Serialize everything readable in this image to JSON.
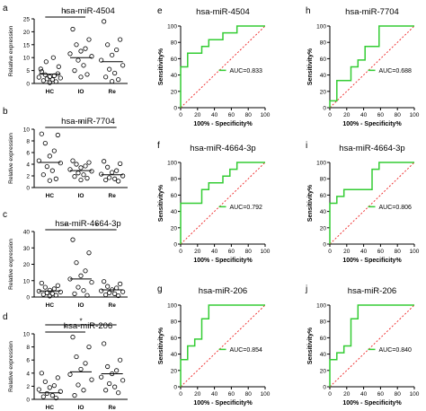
{
  "figure": {
    "background": "#ffffff"
  },
  "colors": {
    "roc": "#33cc33",
    "diagonal": "#ee2222",
    "axis": "#000000",
    "points": "#000000"
  },
  "chart_data": [
    {
      "id": "a",
      "panel": "a",
      "type": "scatter",
      "title": "hsa-miR-4504",
      "ylabel": "Relative expression",
      "ylim": [
        0,
        25
      ],
      "yticks": [
        "0",
        "5",
        "10",
        "15",
        "20",
        "25"
      ],
      "categories": [
        "HC",
        "IO",
        "Re"
      ],
      "points": [
        [
          4.6,
          3.8,
          3.4,
          3.0,
          2.6,
          2.4,
          2.1,
          1.8,
          1.5,
          1.1,
          0.7,
          0.3,
          5.6,
          6.5,
          8.4,
          10.0
        ],
        [
          21.0,
          17.0,
          15.0,
          13.5,
          12.5,
          11.5,
          10.5,
          9.0,
          7.0,
          5.0,
          3.5,
          2.5
        ],
        [
          24.0,
          17.0,
          15.0,
          13.0,
          11.0,
          9.0,
          7.0,
          5.5,
          4.0,
          2.5,
          1.5,
          0.8
        ]
      ],
      "means": [
        3.6,
        10.0,
        8.4
      ],
      "brackets": [
        {
          "from": 0,
          "to": 1,
          "label": "*",
          "level": 0
        }
      ]
    },
    {
      "id": "b",
      "panel": "b",
      "type": "scatter",
      "title": "hsa-miR-7704",
      "ylabel": "Relative expression",
      "ylim": [
        0,
        10
      ],
      "yticks": [
        "0",
        "2",
        "4",
        "6",
        "8",
        "10"
      ],
      "categories": [
        "HC",
        "IO",
        "Re"
      ],
      "points": [
        [
          9.2,
          9.0,
          7.6,
          6.3,
          5.4,
          4.6,
          4.2,
          3.6,
          2.9,
          2.2,
          1.5,
          1.2
        ],
        [
          4.6,
          4.3,
          4.0,
          3.7,
          3.4,
          3.1,
          2.8,
          2.5,
          2.2,
          1.9,
          1.6,
          1.3
        ],
        [
          4.5,
          4.1,
          3.5,
          2.9,
          2.6,
          2.3,
          2.0,
          1.7,
          1.5,
          1.3,
          1.1
        ]
      ],
      "means": [
        4.3,
        2.9,
        2.2
      ],
      "brackets": [
        {
          "from": 0,
          "to": 2,
          "label": "*",
          "level": 0
        }
      ]
    },
    {
      "id": "c",
      "panel": "c",
      "type": "scatter",
      "title": "hsa-miR-4664-3p",
      "ylabel": "Relative expression",
      "ylim": [
        0,
        40
      ],
      "yticks": [
        "0",
        "10",
        "20",
        "30",
        "40"
      ],
      "categories": [
        "HC",
        "IO",
        "Re"
      ],
      "points": [
        [
          8.5,
          7.0,
          6.0,
          5.0,
          4.2,
          3.6,
          3.1,
          2.6,
          2.1,
          1.6,
          1.1,
          0.6
        ],
        [
          35.0,
          27.0,
          21.0,
          16.0,
          13.0,
          11.0,
          9.0,
          6.0,
          4.0,
          2.0,
          1.0
        ],
        [
          9.5,
          8.0,
          6.5,
          5.5,
          4.5,
          3.8,
          3.2,
          2.6,
          2.0,
          1.4,
          0.8
        ]
      ],
      "means": [
        3.7,
        11.0,
        4.4
      ],
      "brackets": [
        {
          "from": 0,
          "to": 1,
          "label": "*",
          "level": 0
        },
        {
          "from": 1,
          "to": 2,
          "label": "*",
          "level": 0
        }
      ]
    },
    {
      "id": "d",
      "panel": "d",
      "type": "scatter",
      "title": "hsa-miR-206",
      "ylabel": "Relative expression",
      "ylim": [
        0,
        10
      ],
      "yticks": [
        "0",
        "2",
        "4",
        "6",
        "8",
        "10"
      ],
      "categories": [
        "HC",
        "IO",
        "Re"
      ],
      "points": [
        [
          4.0,
          3.3,
          2.7,
          2.1,
          1.8,
          1.5,
          1.2,
          0.9,
          0.6,
          0.4,
          0.2
        ],
        [
          9.5,
          8.0,
          6.5,
          5.5,
          4.6,
          3.8,
          3.0,
          2.2,
          1.4,
          0.6
        ],
        [
          8.5,
          6.0,
          5.0,
          4.4,
          3.9,
          3.4,
          2.9,
          2.4,
          1.9,
          1.4,
          1.0
        ]
      ],
      "means": [
        1.0,
        4.2,
        3.9
      ],
      "brackets": [
        {
          "from": 0,
          "to": 1,
          "label": "*",
          "level": 0
        },
        {
          "from": 0,
          "to": 2,
          "label": "*",
          "level": 1
        }
      ]
    },
    {
      "id": "e",
      "panel": "e",
      "type": "line",
      "title": "hsa-miR-4504",
      "xlabel": "100% - Specificity%",
      "ylabel": "Sensitivity%",
      "xlim": [
        0,
        100
      ],
      "ylim": [
        0,
        100
      ],
      "xticks": [
        "0",
        "20",
        "40",
        "60",
        "80",
        "100"
      ],
      "yticks": [
        "0",
        "20",
        "40",
        "60",
        "80",
        "100"
      ],
      "auc_label": "AUC=0.833",
      "roc": [
        [
          0,
          0
        ],
        [
          0,
          50
        ],
        [
          8.3,
          50
        ],
        [
          8.3,
          66.7
        ],
        [
          25,
          66.7
        ],
        [
          25,
          75
        ],
        [
          33.3,
          75
        ],
        [
          33.3,
          83.3
        ],
        [
          50,
          83.3
        ],
        [
          50,
          91.7
        ],
        [
          66.7,
          91.7
        ],
        [
          66.7,
          100
        ],
        [
          100,
          100
        ]
      ]
    },
    {
      "id": "h",
      "panel": "h",
      "type": "line",
      "title": "hsa-miR-7704",
      "xlabel": "100% - Specificity%",
      "ylabel": "Sensitivity%",
      "xlim": [
        0,
        100
      ],
      "ylim": [
        0,
        100
      ],
      "xticks": [
        "0",
        "20",
        "40",
        "60",
        "80",
        "100"
      ],
      "yticks": [
        "0",
        "20",
        "40",
        "60",
        "80",
        "100"
      ],
      "auc_label": "AUC=0.688",
      "roc": [
        [
          0,
          0
        ],
        [
          0,
          8.3
        ],
        [
          8.3,
          8.3
        ],
        [
          8.3,
          33.3
        ],
        [
          25,
          33.3
        ],
        [
          25,
          50
        ],
        [
          33.3,
          50
        ],
        [
          33.3,
          58.3
        ],
        [
          41.7,
          58.3
        ],
        [
          41.7,
          75
        ],
        [
          58.3,
          75
        ],
        [
          58.3,
          100
        ],
        [
          100,
          100
        ]
      ]
    },
    {
      "id": "f",
      "panel": "f",
      "type": "line",
      "title": "hsa-miR-4664-3p",
      "xlabel": "100% - Specificity%",
      "ylabel": "Sensitivity%",
      "xlim": [
        0,
        100
      ],
      "ylim": [
        0,
        100
      ],
      "xticks": [
        "0",
        "20",
        "40",
        "60",
        "80",
        "100"
      ],
      "yticks": [
        "0",
        "20",
        "40",
        "60",
        "80",
        "100"
      ],
      "auc_label": "AUC=0.792",
      "roc": [
        [
          0,
          0
        ],
        [
          0,
          50
        ],
        [
          25,
          50
        ],
        [
          25,
          66.7
        ],
        [
          33.3,
          66.7
        ],
        [
          33.3,
          75
        ],
        [
          50,
          75
        ],
        [
          50,
          83.3
        ],
        [
          58.3,
          83.3
        ],
        [
          58.3,
          91.7
        ],
        [
          66.7,
          91.7
        ],
        [
          66.7,
          100
        ],
        [
          100,
          100
        ]
      ]
    },
    {
      "id": "i",
      "panel": "i",
      "type": "line",
      "title": "hsa-miR-4664-3p",
      "xlabel": "100% - Specificity%",
      "ylabel": "Sensitivity%",
      "xlim": [
        0,
        100
      ],
      "ylim": [
        0,
        100
      ],
      "xticks": [
        "0",
        "20",
        "40",
        "60",
        "80",
        "100"
      ],
      "yticks": [
        "0",
        "20",
        "40",
        "60",
        "80",
        "100"
      ],
      "auc_label": "AUC=0.806",
      "roc": [
        [
          0,
          0
        ],
        [
          0,
          50
        ],
        [
          8.3,
          50
        ],
        [
          8.3,
          58.3
        ],
        [
          16.7,
          58.3
        ],
        [
          16.7,
          66.7
        ],
        [
          50,
          66.7
        ],
        [
          50,
          91.7
        ],
        [
          58.3,
          91.7
        ],
        [
          58.3,
          100
        ],
        [
          100,
          100
        ]
      ]
    },
    {
      "id": "g",
      "panel": "g",
      "type": "line",
      "title": "hsa-miR-206",
      "xlabel": "100% - Specificity%",
      "ylabel": "Sensitivity%",
      "xlim": [
        0,
        100
      ],
      "ylim": [
        0,
        100
      ],
      "xticks": [
        "0",
        "20",
        "40",
        "60",
        "80",
        "100"
      ],
      "yticks": [
        "0",
        "20",
        "40",
        "60",
        "80",
        "100"
      ],
      "auc_label": "AUC=0.854",
      "roc": [
        [
          0,
          0
        ],
        [
          0,
          33.3
        ],
        [
          8.3,
          33.3
        ],
        [
          8.3,
          50
        ],
        [
          16.7,
          50
        ],
        [
          16.7,
          58.3
        ],
        [
          25,
          58.3
        ],
        [
          25,
          83.3
        ],
        [
          33.3,
          83.3
        ],
        [
          33.3,
          100
        ],
        [
          100,
          100
        ]
      ]
    },
    {
      "id": "j",
      "panel": "j",
      "type": "line",
      "title": "hsa-miR-206",
      "xlabel": "100% - Specificity%",
      "ylabel": "Sensitivity%",
      "xlim": [
        0,
        100
      ],
      "ylim": [
        0,
        100
      ],
      "xticks": [
        "0",
        "20",
        "40",
        "60",
        "80",
        "100"
      ],
      "yticks": [
        "0",
        "20",
        "40",
        "60",
        "80",
        "100"
      ],
      "auc_label": "AUC=0.840",
      "roc": [
        [
          0,
          0
        ],
        [
          0,
          33.3
        ],
        [
          8.3,
          33.3
        ],
        [
          8.3,
          41.7
        ],
        [
          16.7,
          41.7
        ],
        [
          16.7,
          50
        ],
        [
          25,
          50
        ],
        [
          25,
          83.3
        ],
        [
          33.3,
          83.3
        ],
        [
          33.3,
          100
        ],
        [
          100,
          100
        ]
      ]
    }
  ]
}
